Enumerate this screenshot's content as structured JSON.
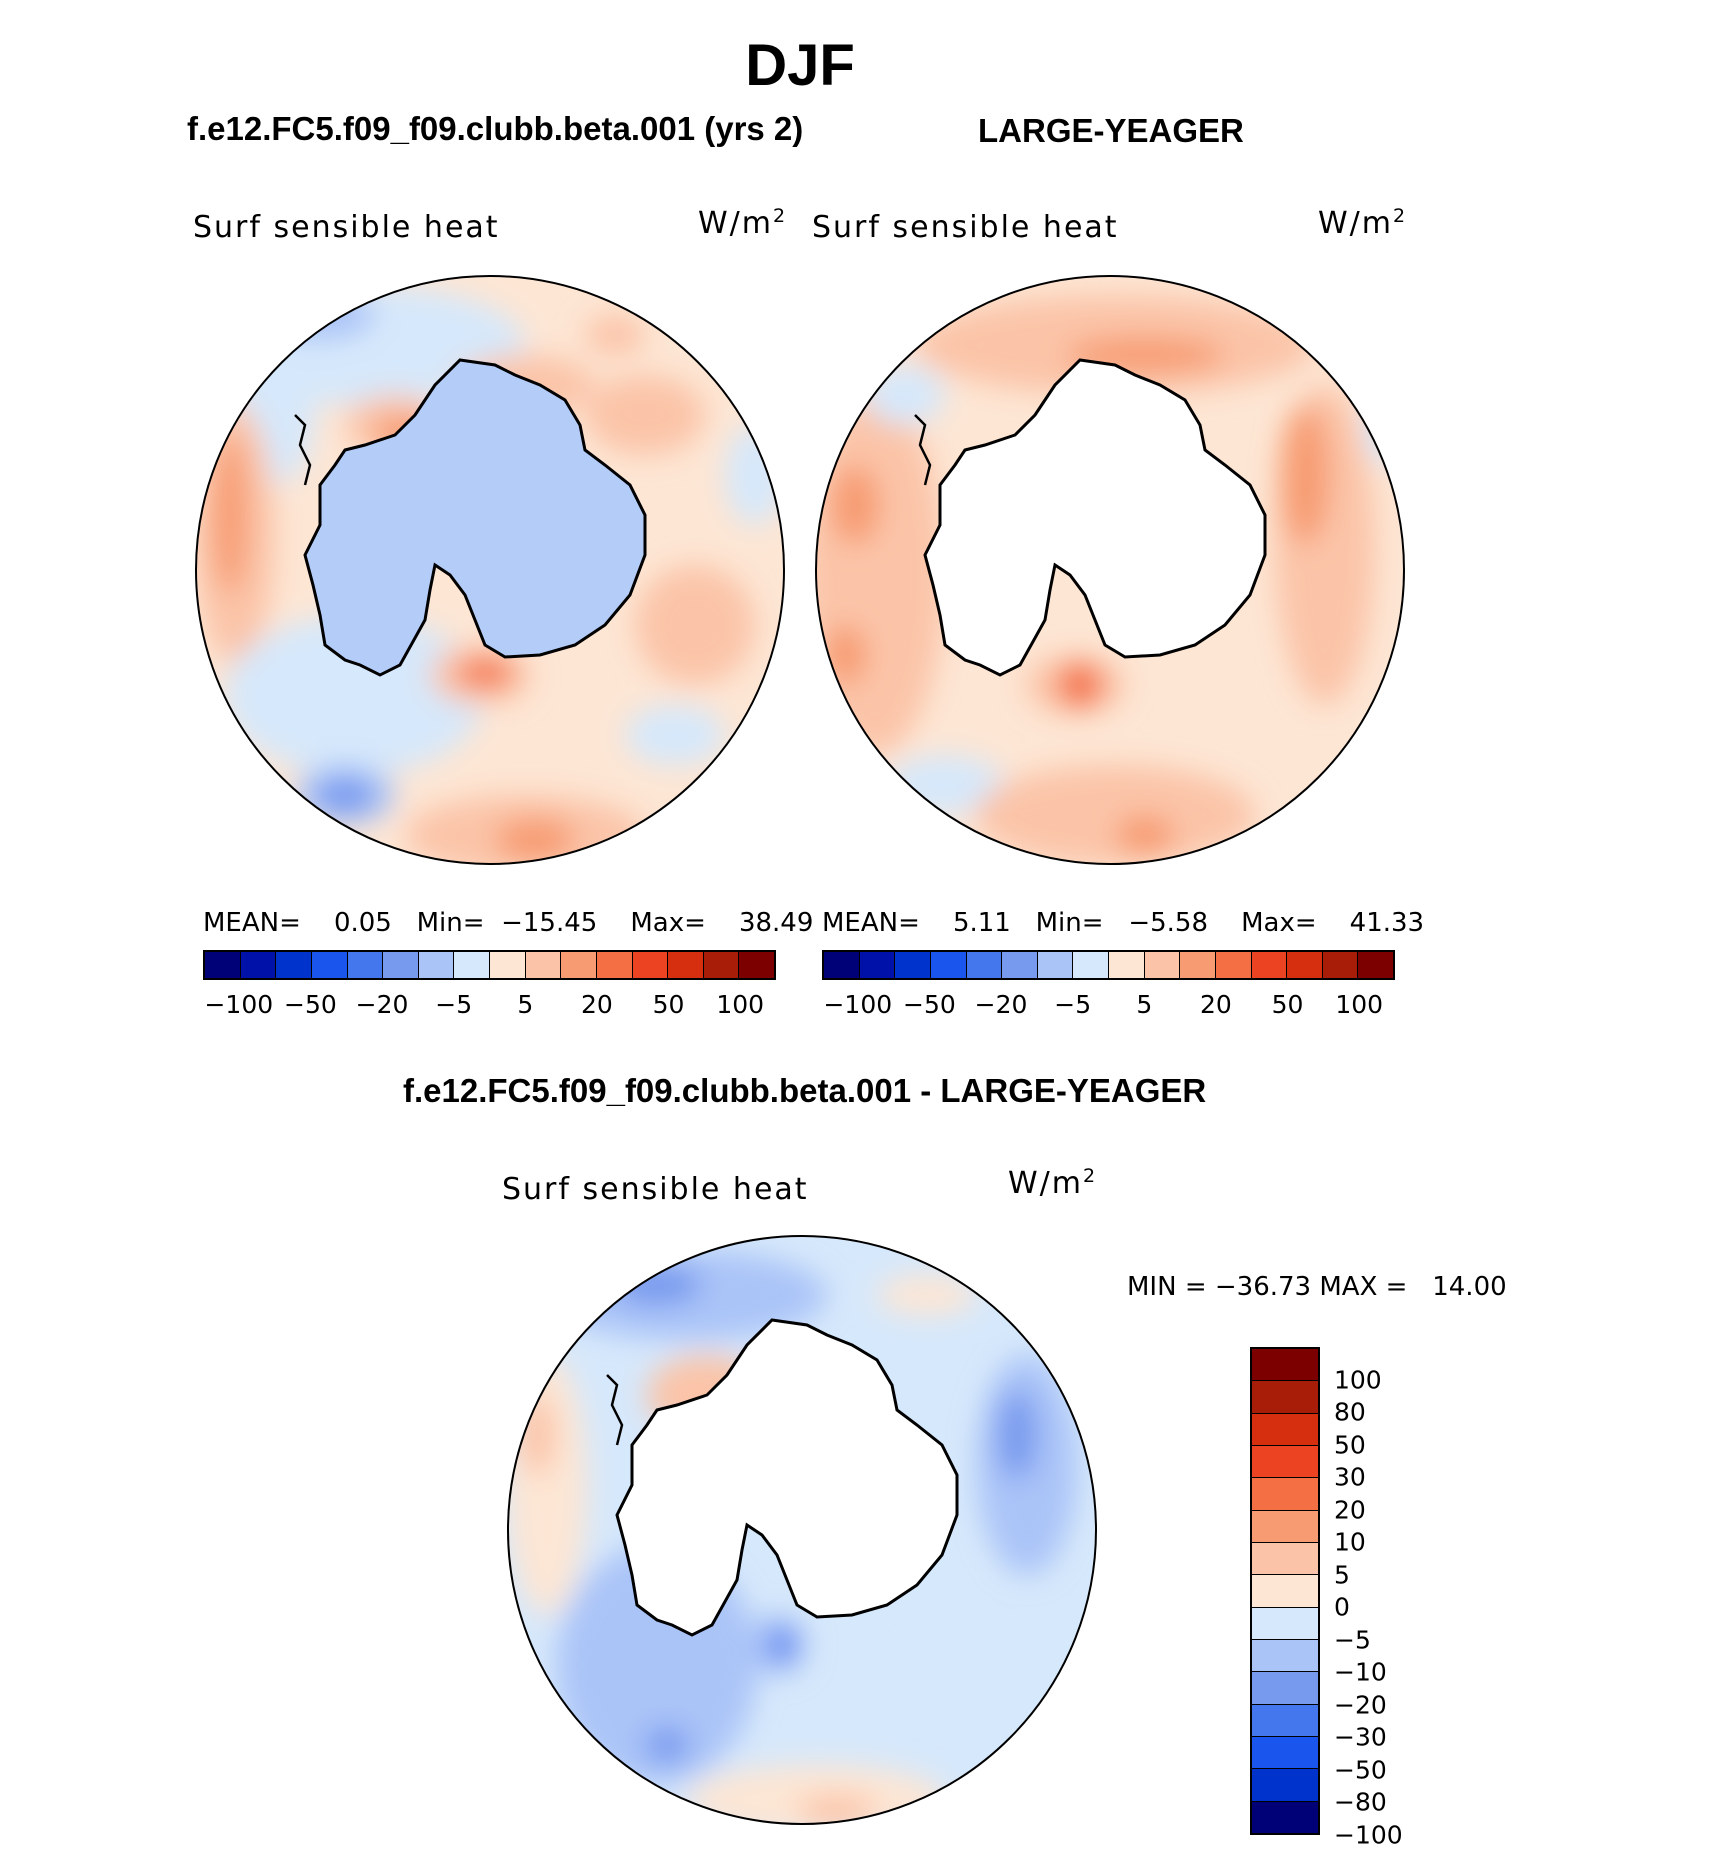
{
  "figure": {
    "season": "DJF",
    "panels": [
      {
        "case_title": "f.e12.FC5.f09_f09.clubb.beta.001 (yrs 2)",
        "field": "Surf sensible heat",
        "units": "W/m",
        "units_sup": "2",
        "stats": "MEAN=    0.05   Min=  −15.45    Max=    38.49",
        "land_fill": "#b4ccf8"
      },
      {
        "case_title": "LARGE-YEAGER",
        "field": "Surf sensible heat",
        "units": "W/m",
        "units_sup": "2",
        "stats": "MEAN=    5.11   Min=   −5.58    Max=    41.33",
        "land_fill": "#ffffff"
      }
    ],
    "diff": {
      "title": "f.e12.FC5.f09_f09.clubb.beta.001 - LARGE-YEAGER",
      "field": "Surf sensible heat",
      "units": "W/m",
      "units_sup": "2",
      "stats": "MIN = −36.73 MAX =   14.00"
    }
  },
  "colorbar_main": {
    "colors": [
      "#000077",
      "#0011aa",
      "#0033cc",
      "#1a55ee",
      "#4477ee",
      "#7799ee",
      "#aac4f8",
      "#d6e8fb",
      "#fde6d4",
      "#fbc4a8",
      "#f79c72",
      "#f46f44",
      "#ec4422",
      "#d52f10",
      "#a81d08",
      "#7c0000"
    ],
    "tick_labels": [
      "−100",
      "−50",
      "−20",
      "−5",
      "5",
      "20",
      "50",
      "100"
    ]
  },
  "colorbar_diff": {
    "colors": [
      "#7c0000",
      "#a81d08",
      "#d52f10",
      "#ec4422",
      "#f46f44",
      "#f79c72",
      "#fbc4a8",
      "#fde6d4",
      "#d6e8fb",
      "#aac4f8",
      "#7799ee",
      "#4477ee",
      "#1a55ee",
      "#0033cc",
      "#000077"
    ],
    "tick_labels": [
      "100",
      "80",
      "50",
      "30",
      "20",
      "10",
      "5",
      "0",
      "−5",
      "−10",
      "−20",
      "−30",
      "−50",
      "−80",
      "−100"
    ]
  }
}
